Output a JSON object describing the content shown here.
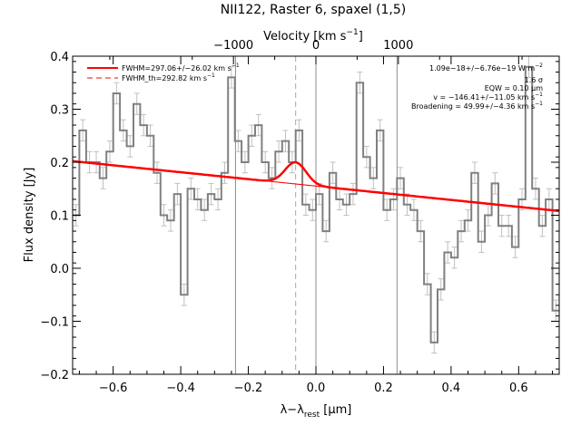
{
  "chart_data": {
    "type": "line",
    "title": "NII122, Raster 6, spaxel (1,5)",
    "xlabel": "λ−λ",
    "xlabel_sub": "rest",
    "xlabel_unit": " [μm]",
    "ylabel": "Flux density [Jy]",
    "top_axis_label": "Velocity [km s",
    "top_axis_label_sup": "−1",
    "top_axis_label_end": "]",
    "xlim": [
      -0.72,
      0.72
    ],
    "ylim": [
      -0.2,
      0.4
    ],
    "x_ticks": [
      -0.6,
      -0.4,
      -0.2,
      0.0,
      0.2,
      0.4,
      0.6
    ],
    "x_tick_labels": [
      "−0.6",
      "−0.4",
      "−0.2",
      "0.0",
      "0.2",
      "0.4",
      "0.6"
    ],
    "y_ticks": [
      -0.2,
      -0.1,
      0.0,
      0.1,
      0.2,
      0.3,
      0.4
    ],
    "y_tick_labels": [
      "−0.2",
      "−0.1",
      "0.0",
      "0.1",
      "0.2",
      "0.3",
      "0.4"
    ],
    "top_ticks_um": [
      -0.244,
      0.0,
      0.244
    ],
    "top_tick_labels": [
      "−1000",
      "0",
      "1000"
    ],
    "vertical_lines_um": [
      -0.238,
      0.0,
      0.24
    ],
    "dashed_line_um": -0.06,
    "legend": [
      {
        "label": "FWHM=297.06+/−26.02 km s",
        "sup": "−1",
        "style": "solid"
      },
      {
        "label": "FWHM_th=292.82 km s",
        "sup": "−1",
        "style": "dashed"
      }
    ],
    "annotations": [
      {
        "text": "1.09e−18+/−6.76e−19 W m",
        "sup": "−2"
      },
      {
        "text": "1.6 σ",
        "sup": ""
      },
      {
        "text": "EQW = 0.10 μm",
        "sup": ""
      },
      {
        "text": "v = −146.41+/−11.05 km s",
        "sup": "−1"
      },
      {
        "text": "Broadening = 49.99+/−4.36 km s",
        "sup": "−1"
      }
    ],
    "colors": {
      "data": "#808080",
      "errorbar": "#c0c0c0",
      "fit": "#ff0000",
      "axes": "#000000"
    },
    "series": [
      {
        "name": "spectrum",
        "x": [
          -0.71,
          -0.69,
          -0.67,
          -0.65,
          -0.63,
          -0.61,
          -0.59,
          -0.57,
          -0.55,
          -0.53,
          -0.51,
          -0.49,
          -0.47,
          -0.45,
          -0.43,
          -0.41,
          -0.39,
          -0.37,
          -0.35,
          -0.33,
          -0.31,
          -0.29,
          -0.27,
          -0.25,
          -0.23,
          -0.21,
          -0.19,
          -0.17,
          -0.15,
          -0.13,
          -0.11,
          -0.09,
          -0.07,
          -0.05,
          -0.03,
          -0.01,
          0.01,
          0.03,
          0.05,
          0.07,
          0.09,
          0.11,
          0.13,
          0.15,
          0.17,
          0.19,
          0.21,
          0.23,
          0.25,
          0.27,
          0.29,
          0.31,
          0.33,
          0.35,
          0.37,
          0.39,
          0.41,
          0.43,
          0.45,
          0.47,
          0.49,
          0.51,
          0.53,
          0.55,
          0.57,
          0.59,
          0.61,
          0.63,
          0.65,
          0.67,
          0.69,
          0.71
        ],
        "values": [
          0.1,
          0.26,
          0.2,
          0.2,
          0.17,
          0.22,
          0.33,
          0.26,
          0.23,
          0.31,
          0.27,
          0.25,
          0.18,
          0.1,
          0.09,
          0.14,
          -0.05,
          0.15,
          0.13,
          0.11,
          0.14,
          0.13,
          0.18,
          0.36,
          0.24,
          0.2,
          0.25,
          0.27,
          0.2,
          0.17,
          0.22,
          0.24,
          0.2,
          0.26,
          0.12,
          0.11,
          0.14,
          0.07,
          0.18,
          0.13,
          0.12,
          0.14,
          0.35,
          0.21,
          0.17,
          0.26,
          0.11,
          0.13,
          0.17,
          0.12,
          0.11,
          0.07,
          -0.03,
          -0.14,
          -0.04,
          0.03,
          0.02,
          0.07,
          0.09,
          0.18,
          0.05,
          0.1,
          0.16,
          0.08,
          0.08,
          0.04,
          0.13,
          0.38,
          0.15,
          0.08,
          0.13,
          -0.08
        ],
        "errors": [
          0.02,
          0.02,
          0.02,
          0.02,
          0.02,
          0.02,
          0.02,
          0.02,
          0.02,
          0.02,
          0.02,
          0.02,
          0.02,
          0.02,
          0.02,
          0.02,
          0.02,
          0.02,
          0.02,
          0.02,
          0.02,
          0.02,
          0.02,
          0.02,
          0.02,
          0.02,
          0.02,
          0.02,
          0.02,
          0.02,
          0.02,
          0.02,
          0.02,
          0.02,
          0.02,
          0.02,
          0.02,
          0.02,
          0.02,
          0.02,
          0.02,
          0.02,
          0.02,
          0.02,
          0.02,
          0.02,
          0.02,
          0.02,
          0.02,
          0.02,
          0.02,
          0.02,
          0.02,
          0.02,
          0.02,
          0.02,
          0.02,
          0.02,
          0.02,
          0.02,
          0.02,
          0.02,
          0.02,
          0.02,
          0.02,
          0.02,
          0.02,
          0.02,
          0.02,
          0.02,
          0.02,
          0.02
        ]
      },
      {
        "name": "continuum",
        "x": [
          -0.72,
          0.72
        ],
        "values": [
          0.202,
          0.108
        ]
      },
      {
        "name": "line_fit",
        "center": -0.06,
        "fwhm": 0.073,
        "amplitude": 0.041
      }
    ]
  }
}
